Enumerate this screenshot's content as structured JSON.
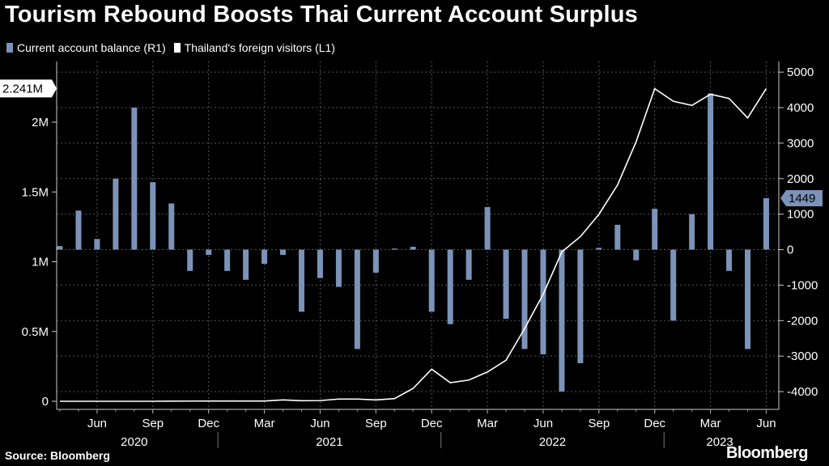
{
  "title": "Tourism Rebound Boosts Thai Current Account Surplus",
  "source": "Source: Bloomberg",
  "brand": "Bloomberg",
  "colors": {
    "bar": "#7b93b8",
    "line": "#ffffff",
    "background": "#000000",
    "grid": "#555555"
  },
  "chart_data": {
    "type": "bar+line",
    "legend": [
      {
        "name": "Current account balance (R1)",
        "color": "#7b93b8",
        "mark": "bar"
      },
      {
        "name": "Thailand's foreign visitors (L1)",
        "color": "#ffffff",
        "mark": "line"
      }
    ],
    "months": [
      "2020-04",
      "2020-05",
      "2020-06",
      "2020-07",
      "2020-08",
      "2020-09",
      "2020-10",
      "2020-11",
      "2020-12",
      "2021-01",
      "2021-02",
      "2021-03",
      "2021-04",
      "2021-05",
      "2021-06",
      "2021-07",
      "2021-08",
      "2021-09",
      "2021-10",
      "2021-11",
      "2021-12",
      "2022-01",
      "2022-02",
      "2022-03",
      "2022-04",
      "2022-05",
      "2022-06",
      "2022-07",
      "2022-08",
      "2022-09",
      "2022-10",
      "2022-11",
      "2022-12",
      "2023-01",
      "2023-02",
      "2023-03",
      "2023-04",
      "2023-05",
      "2023-06"
    ],
    "series": [
      {
        "name": "Current account balance (R1)",
        "axis": "right",
        "values": [
          100,
          1100,
          300,
          2000,
          4000,
          1900,
          1300,
          -600,
          -150,
          -600,
          -850,
          -400,
          -150,
          -1750,
          -800,
          -1050,
          -2800,
          -650,
          30,
          80,
          -1750,
          -2100,
          -850,
          1200,
          -1950,
          -2800,
          -2950,
          -4000,
          -3200,
          50,
          700,
          -300,
          1150,
          -2000,
          1000,
          4400,
          -600,
          -2800,
          1449
        ]
      },
      {
        "name": "Thailand's foreign visitors (L1)",
        "axis": "left",
        "values": [
          0,
          0,
          0,
          0,
          0,
          0,
          1000,
          1500,
          2000,
          2000,
          2000,
          2000,
          10000,
          4000,
          5000,
          16000,
          16000,
          10000,
          19000,
          92000,
          230000,
          133000,
          152000,
          210000,
          294000,
          521000,
          767000,
          1070000,
          1180000,
          1340000,
          1550000,
          1860000,
          2240000,
          2150000,
          2120000,
          2200000,
          2170000,
          2030000,
          2241000
        ]
      }
    ],
    "y_left": {
      "min": 0,
      "max": 2400000,
      "ticks": [
        0,
        500000,
        1000000,
        1500000,
        2000000
      ],
      "tick_labels": [
        "0",
        "0.5M",
        "1M",
        "1.5M",
        "2M"
      ]
    },
    "y_right": {
      "min": -4500,
      "max": 5300,
      "ticks": [
        -4000,
        -3000,
        -2000,
        -1000,
        0,
        1000,
        2000,
        3000,
        4000,
        5000
      ],
      "tick_labels": [
        "-4000",
        "-3000",
        "-2000",
        "-1000",
        "0",
        "1000",
        "2000",
        "3000",
        "4000",
        "5000"
      ]
    },
    "x_ticks": [
      {
        "index": 2,
        "label": "Jun"
      },
      {
        "index": 5,
        "label": "Sep"
      },
      {
        "index": 8,
        "label": "Dec"
      },
      {
        "index": 11,
        "label": "Mar"
      },
      {
        "index": 14,
        "label": "Jun"
      },
      {
        "index": 17,
        "label": "Sep"
      },
      {
        "index": 20,
        "label": "Dec"
      },
      {
        "index": 23,
        "label": "Mar"
      },
      {
        "index": 26,
        "label": "Jun"
      },
      {
        "index": 29,
        "label": "Sep"
      },
      {
        "index": 32,
        "label": "Dec"
      },
      {
        "index": 35,
        "label": "Mar"
      },
      {
        "index": 38,
        "label": "Jun"
      }
    ],
    "years": [
      {
        "label": "2020",
        "start": 0,
        "end": 8
      },
      {
        "label": "2021",
        "start": 9,
        "end": 20
      },
      {
        "label": "2022",
        "start": 21,
        "end": 32
      },
      {
        "label": "2023",
        "start": 33,
        "end": 38
      }
    ],
    "callouts": {
      "left": "2.241M",
      "left_value": 2241000,
      "right": "1449",
      "right_value": 1449
    },
    "grid": true
  }
}
